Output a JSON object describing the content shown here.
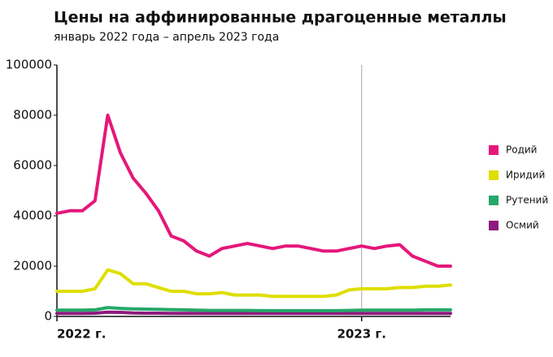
{
  "chart_data": {
    "type": "line",
    "title": "Цены на аффинированные драгоценные металлы",
    "subtitle": "январь 2022 года – апрель 2023 года",
    "categories": [
      "2022 г.",
      null,
      null,
      null,
      null,
      null,
      null,
      null,
      null,
      null,
      null,
      null,
      null,
      null,
      null,
      null,
      null,
      null,
      null,
      null,
      null,
      null,
      null,
      null,
      "2023 г.",
      null,
      null,
      null,
      null,
      null,
      null,
      null
    ],
    "series": [
      {
        "name": "Родий",
        "color": "#e5177a",
        "values": [
          41000,
          42000,
          42000,
          46000,
          80000,
          65000,
          55000,
          49000,
          42000,
          32000,
          30000,
          26000,
          24000,
          27000,
          28000,
          29000,
          28000,
          27000,
          28000,
          28000,
          27000,
          26000,
          26000,
          27000,
          28000,
          27000,
          28000,
          28500,
          24000,
          22000,
          20000,
          20000
        ]
      },
      {
        "name": "Иридий",
        "color": "#dede00",
        "values": [
          10000,
          10000,
          10000,
          11000,
          18500,
          17000,
          13000,
          13000,
          11500,
          10000,
          10000,
          9000,
          9000,
          9500,
          8500,
          8500,
          8500,
          8000,
          8000,
          8000,
          8000,
          8000,
          8500,
          10500,
          11000,
          11000,
          11000,
          11500,
          11500,
          12000,
          12000,
          12500
        ]
      },
      {
        "name": "Рутений",
        "color": "#26a86a",
        "values": [
          2500,
          2500,
          2500,
          2600,
          3500,
          3200,
          3000,
          2900,
          2800,
          2700,
          2600,
          2500,
          2400,
          2400,
          2400,
          2400,
          2300,
          2300,
          2300,
          2300,
          2300,
          2300,
          2300,
          2400,
          2500,
          2500,
          2500,
          2500,
          2500,
          2600,
          2600,
          2600
        ]
      },
      {
        "name": "Осмий",
        "color": "#8e1a7e",
        "values": [
          1200,
          1200,
          1200,
          1300,
          1700,
          1600,
          1400,
          1300,
          1300,
          1200,
          1200,
          1200,
          1200,
          1200,
          1200,
          1200,
          1200,
          1200,
          1200,
          1200,
          1200,
          1200,
          1200,
          1200,
          1200,
          1200,
          1200,
          1200,
          1200,
          1200,
          1200,
          1200
        ]
      }
    ],
    "ylim": [
      0,
      100000
    ],
    "yticks": [
      0,
      20000,
      40000,
      60000,
      80000,
      100000
    ]
  }
}
